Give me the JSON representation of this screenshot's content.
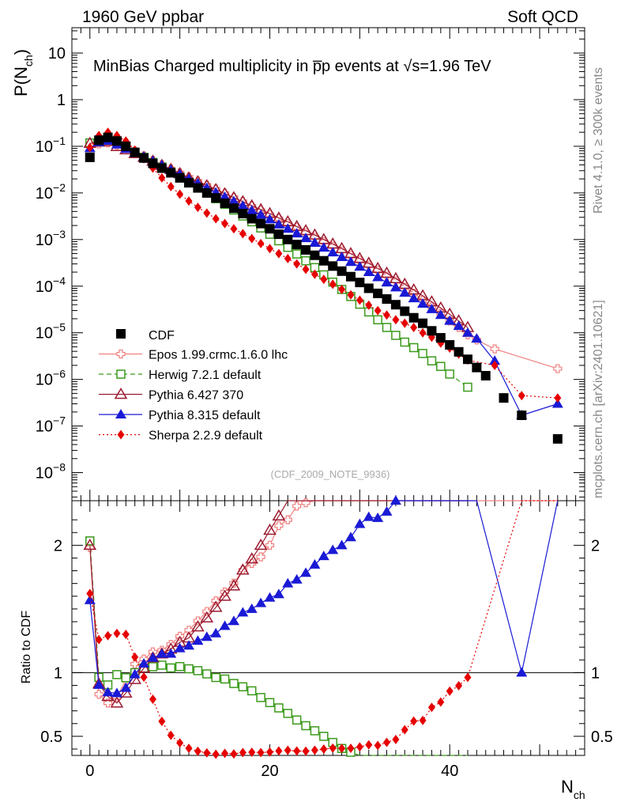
{
  "header": {
    "left": "1960 GeV ppbar",
    "right": "Soft QCD"
  },
  "side_labels": {
    "rivet": "Rivet 4.1.0, ≥ 300k events",
    "mcplots": "mcplots.cern.ch [arXiv:2401.10621]"
  },
  "chart_data": {
    "type": "scatter",
    "title": "MinBias Charged multiplicity in p̅p events at √s=1.96 TeV",
    "reference": "(CDF_2009_NOTE_9936)",
    "xlabel": "N",
    "xlabel_sub": "ch",
    "ylabel": "P(N",
    "ylabel_sub": "ch",
    "ylabel_close": ")",
    "ratio_ylabel": "Ratio to CDF",
    "x_range": [
      -2,
      55
    ],
    "y_range_log": [
      2.5e-09,
      35
    ],
    "ratio_range": [
      0.35,
      2.35
    ],
    "x_ticks": [
      "0",
      "20",
      "40"
    ],
    "x_tick_values": [
      0,
      20,
      40
    ],
    "y_ticks": [
      {
        "v": 1e-08,
        "base": "10",
        "exp": "−8"
      },
      {
        "v": 1e-07,
        "base": "10",
        "exp": "−7"
      },
      {
        "v": 1e-06,
        "base": "10",
        "exp": "−6"
      },
      {
        "v": 1e-05,
        "base": "10",
        "exp": "−5"
      },
      {
        "v": 0.0001,
        "base": "10",
        "exp": "−4"
      },
      {
        "v": 0.001,
        "base": "10",
        "exp": "−3"
      },
      {
        "v": 0.01,
        "base": "10",
        "exp": "−2"
      },
      {
        "v": 0.1,
        "base": "10",
        "exp": "−1"
      },
      {
        "v": 1,
        "base": "1",
        "exp": ""
      },
      {
        "v": 10,
        "base": "10",
        "exp": ""
      }
    ],
    "ratio_ticks": [
      {
        "v": 0.5,
        "label": "0.5"
      },
      {
        "v": 1,
        "label": "1"
      },
      {
        "v": 2,
        "label": "2"
      }
    ],
    "data": {
      "name": "CDF",
      "color": "#000000",
      "points": [
        [
          0,
          0.058
        ],
        [
          1,
          0.135
        ],
        [
          2,
          0.155
        ],
        [
          3,
          0.13
        ],
        [
          4,
          0.1
        ],
        [
          5,
          0.074
        ],
        [
          6,
          0.056
        ],
        [
          7,
          0.043
        ],
        [
          8,
          0.034
        ],
        [
          9,
          0.027
        ],
        [
          10,
          0.021
        ],
        [
          11,
          0.0165
        ],
        [
          12,
          0.0128
        ],
        [
          13,
          0.01
        ],
        [
          14,
          0.0078
        ],
        [
          15,
          0.006
        ],
        [
          16,
          0.0047
        ],
        [
          17,
          0.0036
        ],
        [
          18,
          0.0028
        ],
        [
          19,
          0.0022
        ],
        [
          20,
          0.0017
        ],
        [
          21,
          0.0013
        ],
        [
          22,
          0.001
        ],
        [
          23,
          0.00078
        ],
        [
          24,
          0.0006
        ],
        [
          25,
          0.00046
        ],
        [
          26,
          0.00035
        ],
        [
          27,
          0.00027
        ],
        [
          28,
          0.00021
        ],
        [
          29,
          0.00016
        ],
        [
          30,
          0.00012
        ],
        [
          31,
          9e-05
        ],
        [
          32,
          7e-05
        ],
        [
          33,
          5.3e-05
        ],
        [
          34,
          4e-05
        ],
        [
          35,
          2.9e-05
        ],
        [
          36,
          2.1e-05
        ],
        [
          37,
          1.6e-05
        ],
        [
          38,
          1.1e-05
        ],
        [
          39,
          7.8e-06
        ],
        [
          40,
          5.5e-06
        ],
        [
          41,
          3.9e-06
        ],
        [
          42,
          2.7e-06
        ],
        [
          43,
          1.8e-06
        ],
        [
          44,
          1.2e-06
        ],
        [
          46,
          4e-07
        ],
        [
          48,
          1.7e-07
        ],
        [
          52,
          5.3e-08
        ]
      ]
    },
    "series": [
      {
        "name": "Epos 1.99.crmc.1.6.0 lhc",
        "color": "#f08080",
        "marker": "cross",
        "dash": "",
        "points": [
          [
            0,
            0.115
          ],
          [
            1,
            0.112
          ],
          [
            2,
            0.118
          ],
          [
            3,
            0.105
          ],
          [
            4,
            0.094
          ],
          [
            5,
            0.079
          ],
          [
            6,
            0.062
          ],
          [
            7,
            0.05
          ],
          [
            8,
            0.04
          ],
          [
            9,
            0.033
          ],
          [
            10,
            0.027
          ],
          [
            11,
            0.022
          ],
          [
            12,
            0.018
          ],
          [
            13,
            0.0148
          ],
          [
            14,
            0.0122
          ],
          [
            15,
            0.0098
          ],
          [
            16,
            0.008
          ],
          [
            17,
            0.0065
          ],
          [
            18,
            0.0052
          ],
          [
            19,
            0.0042
          ],
          [
            20,
            0.0034
          ],
          [
            21,
            0.0028
          ],
          [
            22,
            0.0022
          ],
          [
            23,
            0.0018
          ],
          [
            24,
            0.0014
          ],
          [
            25,
            0.00112
          ],
          [
            26,
            0.0009
          ],
          [
            27,
            0.00072
          ],
          [
            28,
            0.00057
          ],
          [
            29,
            0.00046
          ],
          [
            30,
            0.00036
          ],
          [
            31,
            0.00028
          ],
          [
            32,
            0.00022
          ],
          [
            33,
            0.000165
          ],
          [
            34,
            0.00013
          ],
          [
            35,
            9.5e-05
          ],
          [
            36,
            7e-05
          ],
          [
            37,
            5e-05
          ],
          [
            38,
            3.6e-05
          ],
          [
            39,
            2.6e-05
          ],
          [
            40,
            1.8e-05
          ],
          [
            41,
            1.3e-05
          ],
          [
            42,
            9e-06
          ],
          [
            43,
            7e-06
          ],
          [
            45,
            4.5e-06
          ],
          [
            52,
            1.7e-06
          ]
        ]
      },
      {
        "name": "Herwig 7.2.1 default",
        "color": "#3c9a1c",
        "marker": "square-open",
        "dash": "6,4",
        "points": [
          [
            0,
            0.118
          ],
          [
            1,
            0.13
          ],
          [
            2,
            0.14
          ],
          [
            3,
            0.128
          ],
          [
            4,
            0.096
          ],
          [
            5,
            0.074
          ],
          [
            6,
            0.058
          ],
          [
            7,
            0.045
          ],
          [
            8,
            0.036
          ],
          [
            9,
            0.028
          ],
          [
            10,
            0.022
          ],
          [
            11,
            0.017
          ],
          [
            12,
            0.013
          ],
          [
            13,
            0.0099
          ],
          [
            14,
            0.0075
          ],
          [
            15,
            0.0057
          ],
          [
            16,
            0.0043
          ],
          [
            17,
            0.0032
          ],
          [
            18,
            0.0024
          ],
          [
            19,
            0.00177
          ],
          [
            20,
            0.0013
          ],
          [
            21,
            0.00094
          ],
          [
            22,
            0.00068
          ],
          [
            23,
            0.00049
          ],
          [
            24,
            0.00035
          ],
          [
            25,
            0.00025
          ],
          [
            26,
            0.000175
          ],
          [
            27,
            0.000122
          ],
          [
            28,
            8.5e-05
          ],
          [
            29,
            6e-05
          ],
          [
            30,
            4.1e-05
          ],
          [
            31,
            2.8e-05
          ],
          [
            32,
            1.9e-05
          ],
          [
            33,
            1.3e-05
          ],
          [
            34,
            8.8e-06
          ],
          [
            35,
            6.3e-06
          ],
          [
            36,
            4.8e-06
          ],
          [
            37,
            3.6e-06
          ],
          [
            38,
            2.5e-06
          ],
          [
            39,
            1.9e-06
          ],
          [
            40,
            1.3e-06
          ],
          [
            42,
            6.8e-07
          ]
        ]
      },
      {
        "name": "Pythia 6.427 370",
        "color": "#9b1b30",
        "marker": "triangle-open",
        "dash": "",
        "points": [
          [
            0,
            0.116
          ],
          [
            1,
            0.123
          ],
          [
            2,
            0.126
          ],
          [
            3,
            0.099
          ],
          [
            4,
            0.084
          ],
          [
            5,
            0.07
          ],
          [
            6,
            0.058
          ],
          [
            7,
            0.048
          ],
          [
            8,
            0.039
          ],
          [
            9,
            0.032
          ],
          [
            10,
            0.026
          ],
          [
            11,
            0.021
          ],
          [
            12,
            0.0174
          ],
          [
            13,
            0.0143
          ],
          [
            14,
            0.0118
          ],
          [
            15,
            0.0096
          ],
          [
            16,
            0.0079
          ],
          [
            17,
            0.0065
          ],
          [
            18,
            0.0053
          ],
          [
            19,
            0.0044
          ],
          [
            20,
            0.0036
          ],
          [
            21,
            0.0029
          ],
          [
            22,
            0.0024
          ],
          [
            23,
            0.0019
          ],
          [
            24,
            0.00155
          ],
          [
            25,
            0.00125
          ],
          [
            26,
            0.001
          ],
          [
            27,
            0.0008
          ],
          [
            28,
            0.00064
          ],
          [
            29,
            0.0005
          ],
          [
            30,
            0.00039
          ],
          [
            31,
            0.00031
          ],
          [
            32,
            0.00024
          ],
          [
            33,
            0.00019
          ],
          [
            34,
            0.000145
          ],
          [
            35,
            0.00011
          ],
          [
            36,
            8.3e-05
          ],
          [
            37,
            6.2e-05
          ],
          [
            38,
            4.6e-05
          ],
          [
            39,
            3.4e-05
          ],
          [
            40,
            2.5e-05
          ],
          [
            41,
            1.8e-05
          ],
          [
            42,
            1.3e-05
          ]
        ]
      },
      {
        "name": "Pythia 8.315 default",
        "color": "#1a1ad6",
        "marker": "triangle",
        "dash": "",
        "points": [
          [
            0,
            0.091
          ],
          [
            1,
            0.122
          ],
          [
            2,
            0.131
          ],
          [
            3,
            0.109
          ],
          [
            4,
            0.088
          ],
          [
            5,
            0.073
          ],
          [
            6,
            0.06
          ],
          [
            7,
            0.048
          ],
          [
            8,
            0.039
          ],
          [
            9,
            0.031
          ],
          [
            10,
            0.025
          ],
          [
            11,
            0.02
          ],
          [
            12,
            0.016
          ],
          [
            13,
            0.0128
          ],
          [
            14,
            0.0102
          ],
          [
            15,
            0.0082
          ],
          [
            16,
            0.0066
          ],
          [
            17,
            0.0053
          ],
          [
            18,
            0.0042
          ],
          [
            19,
            0.0034
          ],
          [
            20,
            0.0027
          ],
          [
            21,
            0.0021
          ],
          [
            22,
            0.0017
          ],
          [
            23,
            0.00135
          ],
          [
            24,
            0.00107
          ],
          [
            25,
            0.00085
          ],
          [
            26,
            0.00067
          ],
          [
            27,
            0.00053
          ],
          [
            28,
            0.00042
          ],
          [
            29,
            0.00033
          ],
          [
            30,
            0.00026
          ],
          [
            31,
            0.0002
          ],
          [
            32,
            0.000155
          ],
          [
            33,
            0.00012
          ],
          [
            34,
            9.4e-05
          ],
          [
            35,
            7.2e-05
          ],
          [
            36,
            5.5e-05
          ],
          [
            37,
            4.2e-05
          ],
          [
            38,
            3.2e-05
          ],
          [
            39,
            2.4e-05
          ],
          [
            40,
            1.8e-05
          ],
          [
            41,
            1.4e-05
          ],
          [
            42,
            1e-05
          ],
          [
            43,
            7.5e-06
          ],
          [
            45,
            2.5e-06
          ],
          [
            48,
            1.7e-07
          ],
          [
            52,
            3e-07
          ]
        ]
      },
      {
        "name": "Sherpa 2.2.9 default",
        "color": "#e60000",
        "marker": "diamond",
        "dash": "2,3",
        "points": [
          [
            0,
            0.094
          ],
          [
            1,
            0.17
          ],
          [
            2,
            0.2
          ],
          [
            3,
            0.17
          ],
          [
            4,
            0.13
          ],
          [
            5,
            0.083
          ],
          [
            6,
            0.054
          ],
          [
            7,
            0.034
          ],
          [
            8,
            0.021
          ],
          [
            9,
            0.0137
          ],
          [
            10,
            0.0094
          ],
          [
            11,
            0.0067
          ],
          [
            12,
            0.0049
          ],
          [
            13,
            0.0037
          ],
          [
            14,
            0.0028
          ],
          [
            15,
            0.0022
          ],
          [
            16,
            0.0017
          ],
          [
            17,
            0.00134
          ],
          [
            18,
            0.00105
          ],
          [
            19,
            0.00082
          ],
          [
            20,
            0.00064
          ],
          [
            21,
            0.0005
          ],
          [
            22,
            0.00039
          ],
          [
            23,
            0.0003
          ],
          [
            24,
            0.00023
          ],
          [
            25,
            0.00018
          ],
          [
            26,
            0.00014
          ],
          [
            27,
            0.00011
          ],
          [
            28,
            8.5e-05
          ],
          [
            29,
            6.5e-05
          ],
          [
            30,
            5e-05
          ],
          [
            31,
            3.9e-05
          ],
          [
            32,
            3e-05
          ],
          [
            33,
            2.4e-05
          ],
          [
            34,
            1.9e-05
          ],
          [
            35,
            1.6e-05
          ],
          [
            36,
            1.3e-05
          ],
          [
            37,
            1e-05
          ],
          [
            38,
            8e-06
          ],
          [
            39,
            6e-06
          ],
          [
            40,
            4.7e-06
          ],
          [
            41,
            3.5e-06
          ],
          [
            42,
            2.6e-06
          ],
          [
            45,
            2e-06
          ],
          [
            48,
            4.5e-07
          ],
          [
            52,
            4e-07
          ]
        ]
      }
    ]
  }
}
